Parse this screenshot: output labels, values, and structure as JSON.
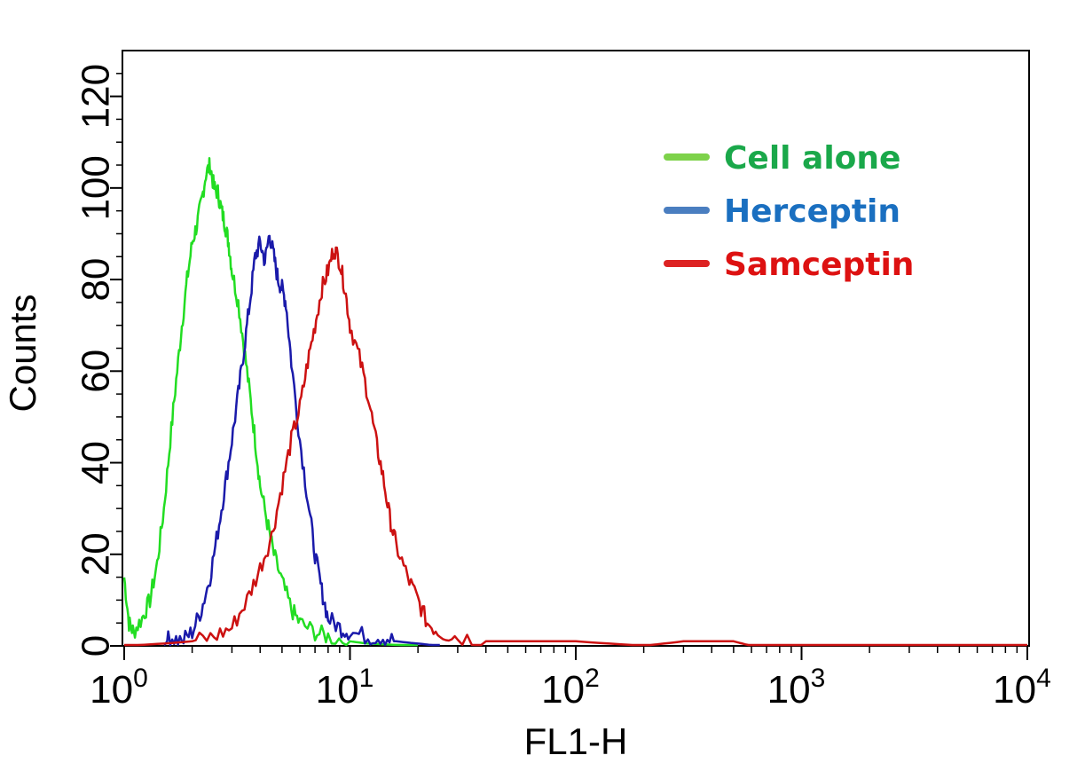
{
  "chart_data": {
    "type": "line",
    "title": "",
    "xlabel": "FL1-H",
    "ylabel": "Counts",
    "x_scale": "log",
    "xlim": [
      1,
      10000
    ],
    "ylim": [
      0,
      130
    ],
    "x_ticks": [
      {
        "base": "10",
        "exp": "0"
      },
      {
        "base": "10",
        "exp": "1"
      },
      {
        "base": "10",
        "exp": "2"
      },
      {
        "base": "10",
        "exp": "3"
      },
      {
        "base": "10",
        "exp": "4"
      }
    ],
    "y_ticks": [
      "0",
      "20",
      "40",
      "60",
      "80",
      "100",
      "120"
    ],
    "y_tick_values": [
      0,
      20,
      40,
      60,
      80,
      100,
      120
    ],
    "grid": false,
    "legend_position": "top-right",
    "series": [
      {
        "name": "Cell alone",
        "color": "#22dd22",
        "legend_color": "#7dd24a",
        "text_color": "#1aa84a",
        "points": [
          [
            1.0,
            15
          ],
          [
            1.05,
            5
          ],
          [
            1.1,
            3
          ],
          [
            1.2,
            6
          ],
          [
            1.3,
            10
          ],
          [
            1.4,
            18
          ],
          [
            1.5,
            30
          ],
          [
            1.6,
            45
          ],
          [
            1.7,
            58
          ],
          [
            1.8,
            70
          ],
          [
            1.9,
            80
          ],
          [
            2.0,
            88
          ],
          [
            2.1,
            92
          ],
          [
            2.2,
            97
          ],
          [
            2.3,
            103
          ],
          [
            2.4,
            105
          ],
          [
            2.5,
            100
          ],
          [
            2.6,
            99
          ],
          [
            2.7,
            95
          ],
          [
            2.8,
            92
          ],
          [
            2.9,
            88
          ],
          [
            3.0,
            82
          ],
          [
            3.2,
            75
          ],
          [
            3.4,
            65
          ],
          [
            3.6,
            55
          ],
          [
            3.8,
            45
          ],
          [
            4.0,
            35
          ],
          [
            4.3,
            27
          ],
          [
            4.6,
            20
          ],
          [
            5.0,
            14
          ],
          [
            5.5,
            8
          ],
          [
            6.0,
            5
          ],
          [
            7.0,
            3
          ],
          [
            8.0,
            2
          ],
          [
            10.0,
            1
          ],
          [
            12.0,
            0.5
          ],
          [
            20.0,
            0
          ]
        ]
      },
      {
        "name": "Herceptin",
        "color": "#1a1aaa",
        "legend_color": "#4a7ec0",
        "text_color": "#1a6fc0",
        "points": [
          [
            1.5,
            0
          ],
          [
            1.6,
            2
          ],
          [
            1.8,
            1
          ],
          [
            2.0,
            3
          ],
          [
            2.2,
            8
          ],
          [
            2.4,
            15
          ],
          [
            2.6,
            25
          ],
          [
            2.8,
            35
          ],
          [
            3.0,
            45
          ],
          [
            3.2,
            55
          ],
          [
            3.4,
            65
          ],
          [
            3.6,
            75
          ],
          [
            3.8,
            85
          ],
          [
            4.0,
            88
          ],
          [
            4.2,
            84
          ],
          [
            4.4,
            90
          ],
          [
            4.6,
            85
          ],
          [
            4.8,
            80
          ],
          [
            5.0,
            78
          ],
          [
            5.2,
            75
          ],
          [
            5.5,
            62
          ],
          [
            6.0,
            45
          ],
          [
            6.5,
            32
          ],
          [
            7.0,
            20
          ],
          [
            7.5,
            12
          ],
          [
            8.0,
            6
          ],
          [
            9.0,
            4
          ],
          [
            10.0,
            3
          ],
          [
            12.0,
            2
          ],
          [
            14.0,
            2
          ],
          [
            16.0,
            1
          ],
          [
            20.0,
            0.5
          ],
          [
            25.0,
            0
          ]
        ]
      },
      {
        "name": "Samceptin",
        "color": "#cc1111",
        "legend_color": "#dd2222",
        "text_color": "#dd1111",
        "points": [
          [
            1.0,
            0
          ],
          [
            1.5,
            0.5
          ],
          [
            2.0,
            1
          ],
          [
            2.5,
            2
          ],
          [
            3.0,
            4
          ],
          [
            3.5,
            10
          ],
          [
            4.0,
            17
          ],
          [
            4.5,
            24
          ],
          [
            5.0,
            35
          ],
          [
            5.5,
            45
          ],
          [
            6.0,
            52
          ],
          [
            6.5,
            62
          ],
          [
            7.0,
            70
          ],
          [
            7.5,
            78
          ],
          [
            8.0,
            82
          ],
          [
            8.5,
            87
          ],
          [
            9.0,
            84
          ],
          [
            9.5,
            78
          ],
          [
            10.0,
            70
          ],
          [
            11.0,
            63
          ],
          [
            12.0,
            55
          ],
          [
            13.0,
            45
          ],
          [
            14.0,
            37
          ],
          [
            15.0,
            28
          ],
          [
            16.0,
            22
          ],
          [
            18.0,
            15
          ],
          [
            20.0,
            10
          ],
          [
            22.0,
            5
          ],
          [
            25.0,
            3
          ],
          [
            30.0,
            2
          ],
          [
            40.0,
            1
          ],
          [
            60.0,
            1
          ],
          [
            100.0,
            1
          ],
          [
            200.0,
            0
          ],
          [
            300.0,
            1
          ],
          [
            500.0,
            1
          ],
          [
            600.0,
            0
          ],
          [
            10000.0,
            0
          ]
        ]
      }
    ]
  }
}
